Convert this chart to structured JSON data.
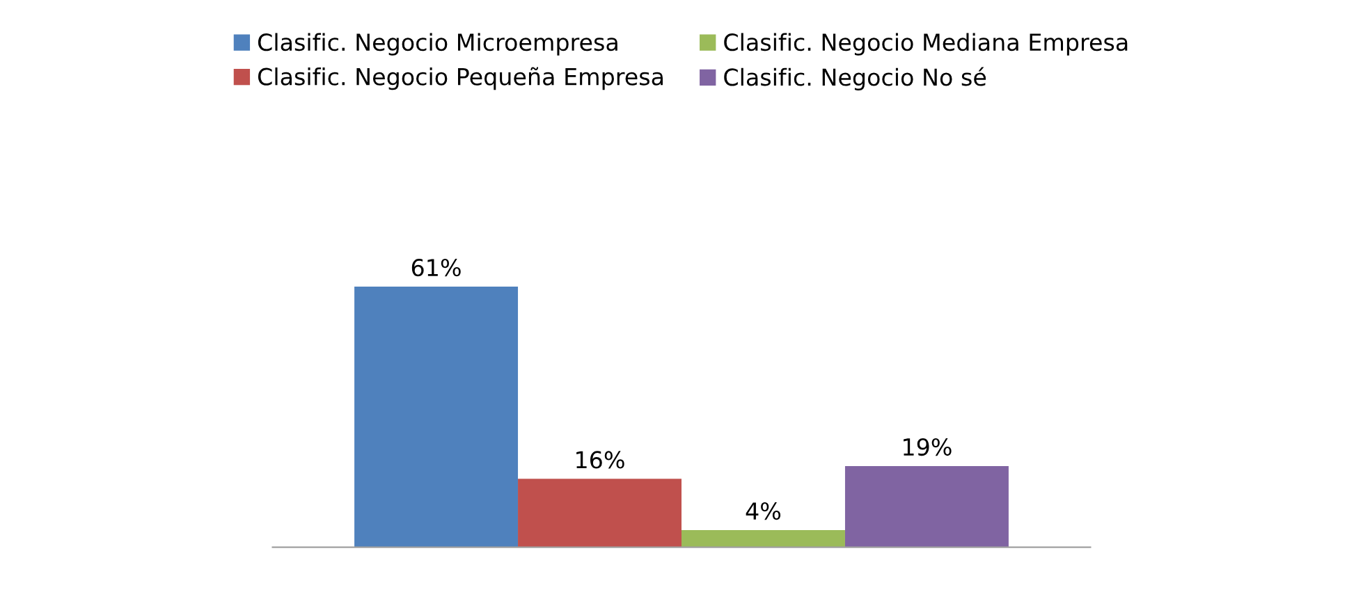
{
  "chart_data": {
    "type": "bar",
    "categories": [
      null
    ],
    "legend": "top",
    "series": [
      {
        "name": "Clasific. Negocio Microempresa",
        "color": "#4f81bd",
        "values": [
          61
        ],
        "value_labels": [
          "61%"
        ]
      },
      {
        "name": "Clasific. Negocio Pequeña Empresa",
        "color": "#c0504d",
        "values": [
          16
        ],
        "value_labels": [
          "16%"
        ]
      },
      {
        "name": "Clasific. Negocio Mediana Empresa",
        "color": "#9bbb59",
        "values": [
          4
        ],
        "value_labels": [
          "4%"
        ]
      },
      {
        "name": "Clasific. Negocio No sé",
        "color": "#8064a2",
        "values": [
          19
        ],
        "value_labels": [
          "19%"
        ]
      }
    ]
  }
}
